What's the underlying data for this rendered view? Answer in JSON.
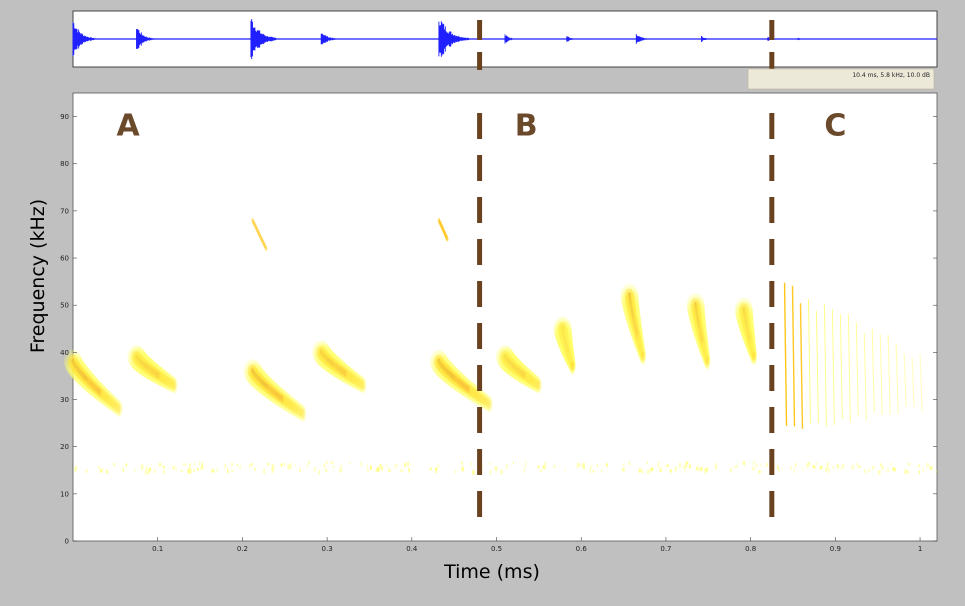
{
  "chart_data": [
    {
      "type": "line",
      "panel": "waveform overview",
      "series": [
        {
          "color": "#1f1fff",
          "bursts": [
            {
              "t": 0.0,
              "amp": 0.85,
              "len": 0.025
            },
            {
              "t": 0.075,
              "amp": 0.6,
              "len": 0.02
            },
            {
              "t": 0.21,
              "amp": 0.95,
              "len": 0.03
            },
            {
              "t": 0.293,
              "amp": 0.35,
              "len": 0.02
            },
            {
              "t": 0.432,
              "amp": 1.0,
              "len": 0.035
            },
            {
              "t": 0.51,
              "amp": 0.2,
              "len": 0.015
            },
            {
              "t": 0.583,
              "amp": 0.15,
              "len": 0.012
            },
            {
              "t": 0.665,
              "amp": 0.2,
              "len": 0.018
            },
            {
              "t": 0.742,
              "amp": 0.12,
              "len": 0.012
            },
            {
              "t": 0.82,
              "amp": 0.1,
              "len": 0.01
            },
            {
              "t": 0.856,
              "amp": 0.05,
              "len": 0.01
            }
          ]
        }
      ],
      "readout": "10.4 ms,  5.8 kHz, 10.0 dB"
    },
    {
      "type": "heatmap",
      "panel": "spectrogram",
      "xlabel": "Time (ms)",
      "ylabel": "Frequency (kHz)",
      "xlim": [
        0,
        1.02
      ],
      "ylim": [
        0,
        95
      ],
      "xticks": [
        "0.1",
        "0.2",
        "0.3",
        "0.4",
        "0.5",
        "0.6",
        "0.7",
        "0.8",
        "0.9",
        "1"
      ],
      "yticks": [
        "0",
        "10",
        "20",
        "30",
        "40",
        "50",
        "60",
        "70",
        "80",
        "90"
      ],
      "xtick_values": [
        0.1,
        0.2,
        0.3,
        0.4,
        0.5,
        0.6,
        0.7,
        0.8,
        0.9,
        1.0
      ],
      "ytick_values": [
        0,
        10,
        20,
        30,
        40,
        50,
        60,
        70,
        80,
        90
      ],
      "section_boundaries": [
        0.48,
        0.825
      ],
      "boundary_color": "#6b4220",
      "sections": [
        {
          "label": "A",
          "t": 0.065,
          "f": 86
        },
        {
          "label": "B",
          "t": 0.535,
          "f": 86
        },
        {
          "label": "C",
          "t": 0.9,
          "f": 86
        }
      ],
      "calls": [
        {
          "t": 0.0,
          "f_start": 38,
          "f_end": 28,
          "dur": 0.055,
          "strength": 0.95
        },
        {
          "t": 0.075,
          "f_start": 39,
          "f_end": 33,
          "dur": 0.045,
          "strength": 0.85
        },
        {
          "t": 0.212,
          "f_start": 36,
          "f_end": 27,
          "dur": 0.06,
          "strength": 0.95
        },
        {
          "t": 0.293,
          "f_start": 40,
          "f_end": 33,
          "dur": 0.05,
          "strength": 0.85
        },
        {
          "t": 0.432,
          "f_start": 38,
          "f_end": 29,
          "dur": 0.06,
          "strength": 1.0
        },
        {
          "t": 0.51,
          "f_start": 39,
          "f_end": 33,
          "dur": 0.04,
          "strength": 0.75
        },
        {
          "t": 0.578,
          "f_start": 45,
          "f_end": 37,
          "dur": 0.012,
          "strength": 0.9
        },
        {
          "t": 0.657,
          "f_start": 52,
          "f_end": 39,
          "dur": 0.016,
          "strength": 0.9
        },
        {
          "t": 0.735,
          "f_start": 50,
          "f_end": 38,
          "dur": 0.014,
          "strength": 0.85
        },
        {
          "t": 0.792,
          "f_start": 49,
          "f_end": 39,
          "dur": 0.012,
          "strength": 0.8
        }
      ],
      "harmonics": [
        {
          "t": 0.212,
          "f_start": 68,
          "f_end": 62,
          "dur": 0.016
        },
        {
          "t": 0.432,
          "f_start": 68,
          "f_end": 64,
          "dur": 0.01
        }
      ],
      "buzz": {
        "t_start": 0.84,
        "t_end": 1.0,
        "f_top": 52,
        "f_bottom": 23,
        "count": 18
      },
      "noise_band_kHz": [
        15,
        17
      ],
      "colormap": [
        "#ffffe6",
        "#ffff66",
        "#ffc000",
        "#ff6a00",
        "#e01010",
        "#8a0000",
        "#2a0000"
      ]
    }
  ]
}
